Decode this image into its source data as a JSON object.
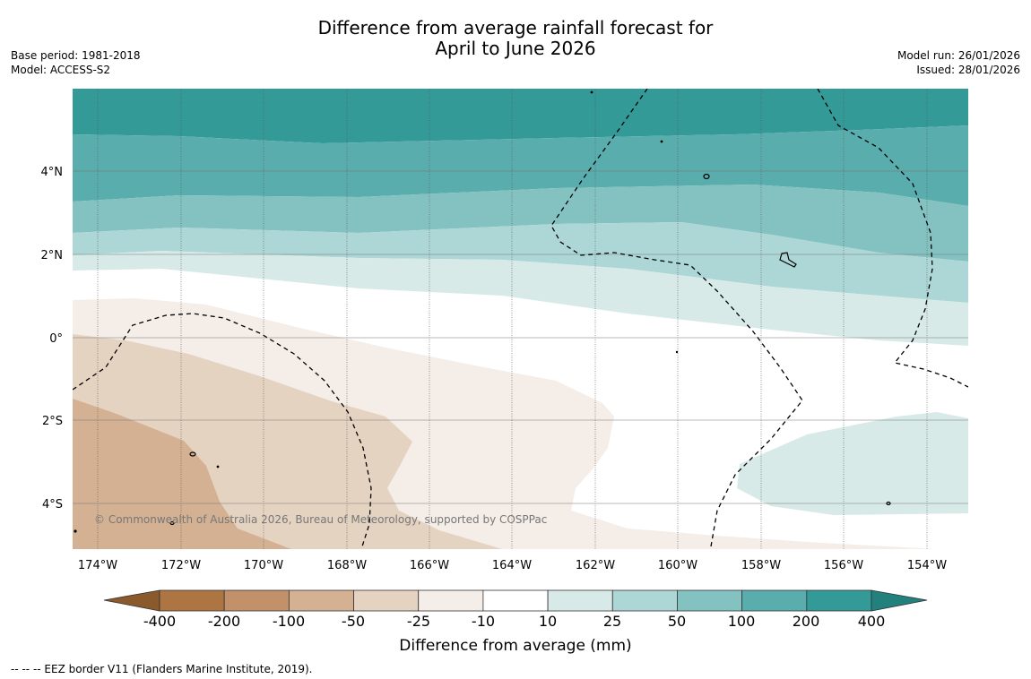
{
  "title": {
    "line1": "Difference from average rainfall forecast for",
    "line2": "April to June 2026"
  },
  "meta_left": {
    "base_period": "Base period: 1981-2018",
    "model": "Model: ACCESS-S2"
  },
  "meta_right": {
    "model_run": "Model run: 26/01/2026",
    "issued": "Issued: 28/01/2026"
  },
  "map": {
    "lon_labels": [
      "174°W",
      "172°W",
      "170°W",
      "168°W",
      "166°W",
      "164°W",
      "162°W",
      "160°W",
      "158°W",
      "156°W",
      "154°W"
    ],
    "lat_labels": [
      "4°N",
      "2°N",
      "0°",
      "2°S",
      "4°S"
    ],
    "copyright": "© Commonwealth of Australia 2026, Bureau of Meteorology, supported by COSPPac"
  },
  "colorbar": {
    "ticks": [
      "-400",
      "-200",
      "-100",
      "-50",
      "-25",
      "-10",
      "10",
      "25",
      "50",
      "100",
      "200",
      "400"
    ],
    "colors": [
      "#ac7541",
      "#c2916a",
      "#d4b193",
      "#e5d3c2",
      "#f5ede7",
      "#ffffff",
      "#d7eae8",
      "#add7d6",
      "#83c2c0",
      "#5aadad",
      "#339a98"
    ],
    "extend_low_color": "#8a5a2c",
    "extend_high_color": "#22817d",
    "label": "Difference from average (mm)"
  },
  "footer": "--  --  -- EEZ border V11 (Flanders Marine Institute, 2019)."
}
